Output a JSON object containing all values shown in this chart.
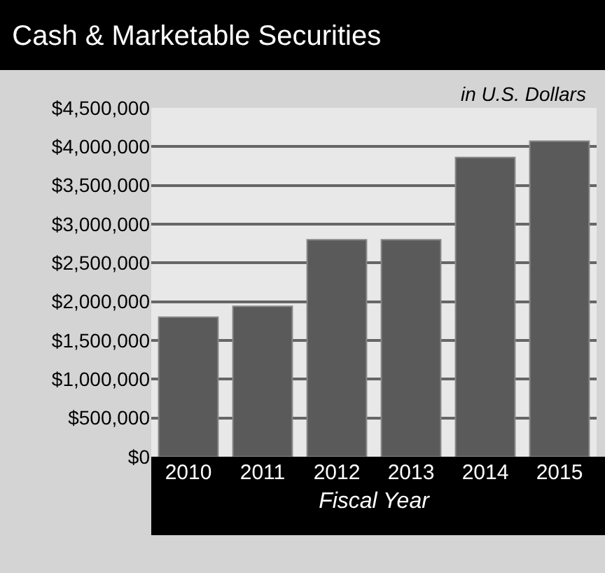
{
  "chart_data": {
    "type": "bar",
    "title": "Cash & Marketable Securities",
    "subtitle": "in U.S. Dollars",
    "xlabel": "Fiscal Year",
    "categories": [
      "2010",
      "2011",
      "2012",
      "2013",
      "2014",
      "2015"
    ],
    "values": [
      1800000,
      1940000,
      2800000,
      2800000,
      3860000,
      4070000
    ],
    "color": "#5a5a5a",
    "ylim": [
      0,
      4500000
    ],
    "yticks": [
      {
        "value": 0,
        "label": "$0"
      },
      {
        "value": 500000,
        "label": "$500,000"
      },
      {
        "value": 1000000,
        "label": "$1,000,000"
      },
      {
        "value": 1500000,
        "label": "$1,500,000"
      },
      {
        "value": 2000000,
        "label": "$2,000,000"
      },
      {
        "value": 2500000,
        "label": "$2,500,000"
      },
      {
        "value": 3000000,
        "label": "$3,000,000"
      },
      {
        "value": 3500000,
        "label": "$3,500,000"
      },
      {
        "value": 4000000,
        "label": "$4,000,000"
      },
      {
        "value": 4500000,
        "label": "$4,500,000"
      }
    ],
    "grid": "y"
  }
}
